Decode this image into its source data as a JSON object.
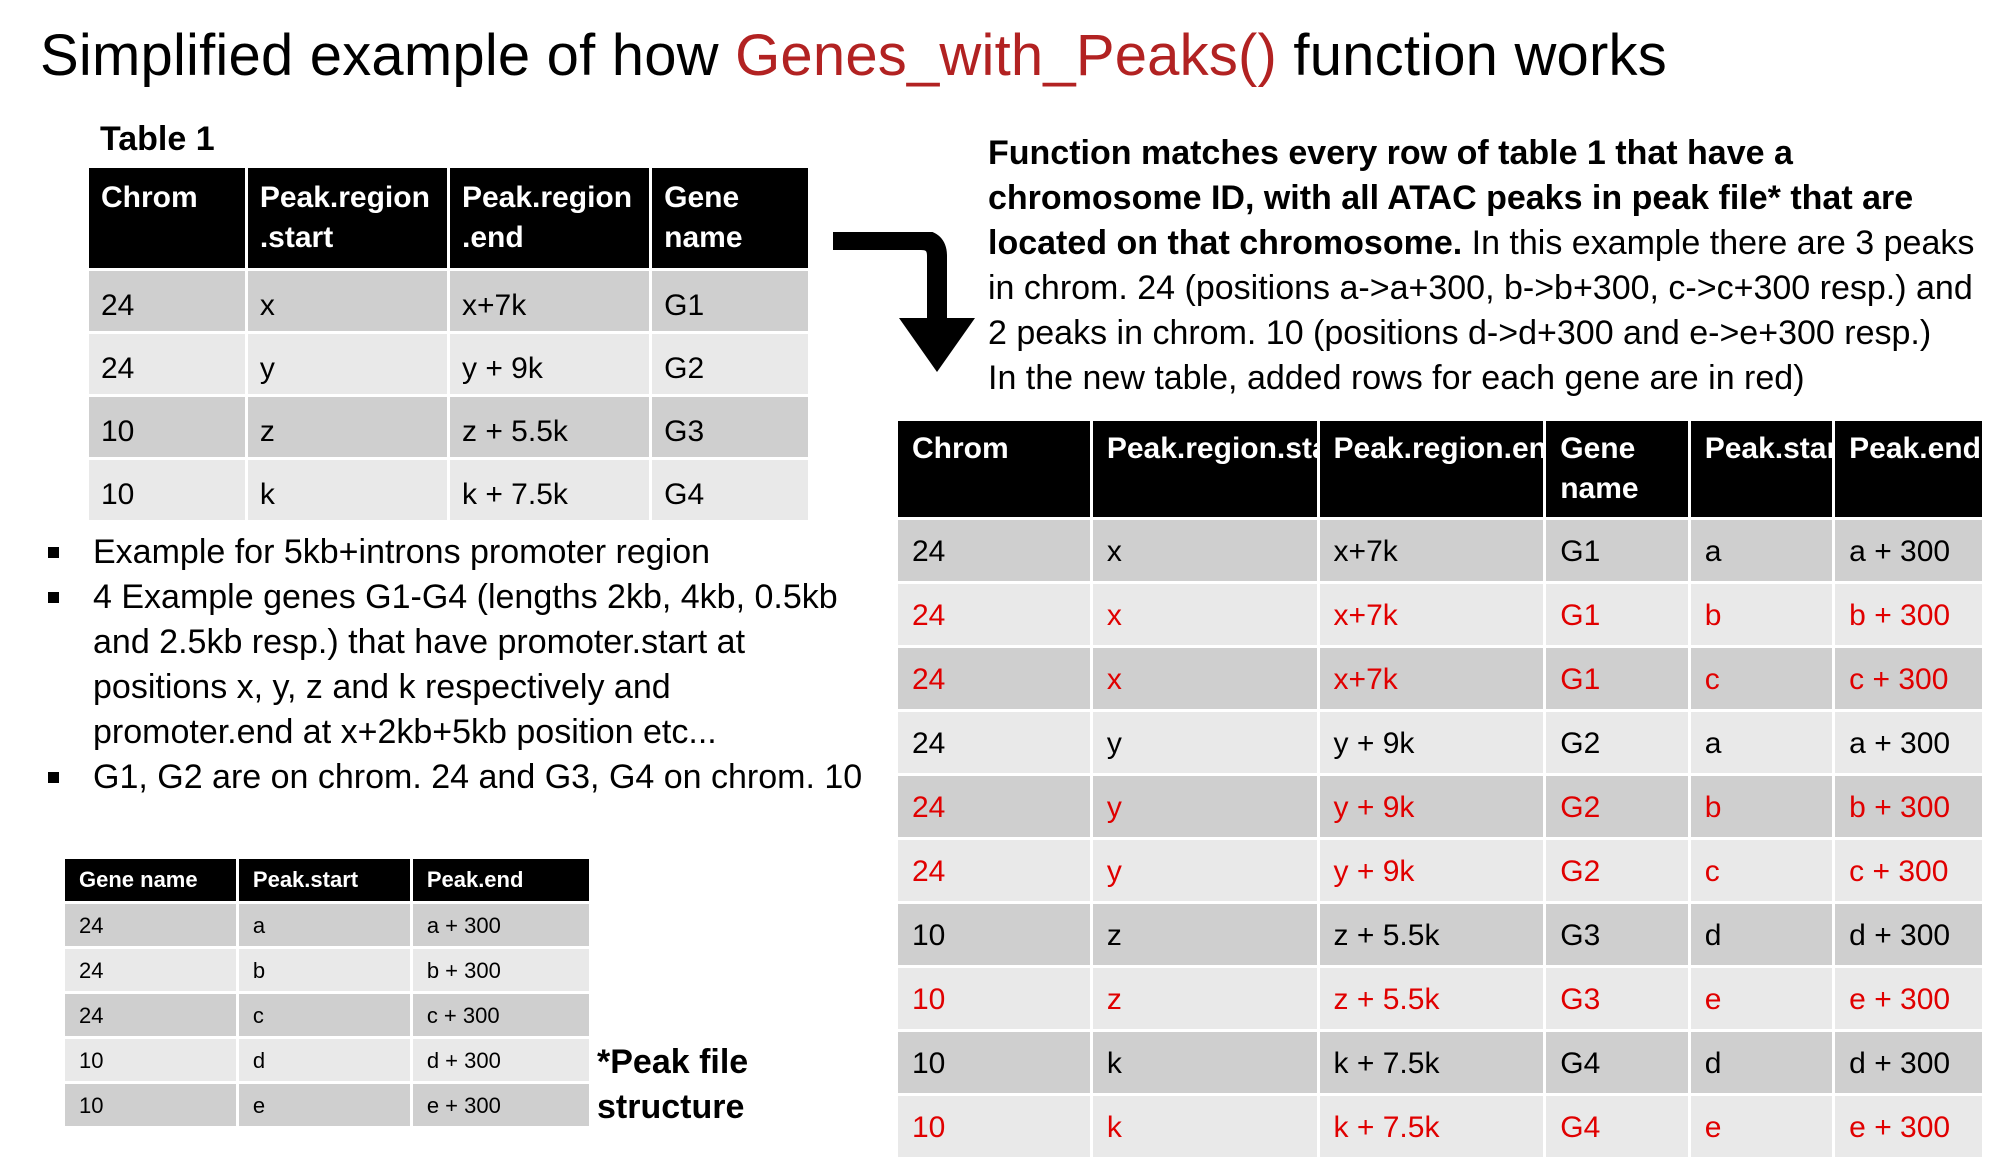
{
  "title": {
    "prefix": "Simplified example of how ",
    "function_name": "Genes_with_Peaks()",
    "suffix": " function works"
  },
  "table1": {
    "caption": "Table 1",
    "headers": [
      "Chrom",
      "Peak.region .start",
      "Peak.region .end",
      "Gene name"
    ],
    "rows": [
      [
        "24",
        "x",
        "x+7k",
        "G1"
      ],
      [
        "24",
        "y",
        "y + 9k",
        "G2"
      ],
      [
        "10",
        "z",
        "z + 5.5k",
        "G3"
      ],
      [
        "10",
        "k",
        "k + 7.5k",
        "G4"
      ]
    ]
  },
  "bullets": [
    "Example for 5kb+introns promoter region",
    "4 Example genes G1-G4 (lengths 2kb, 4kb, 0.5kb and 2.5kb resp.) that have promoter.start at positions x, y, z and k respectively and promoter.end at x+2kb+5kb position etc...",
    "G1, G2 are on chrom. 24 and G3, G4 on chrom. 10"
  ],
  "peak_file": {
    "caption": "*Peak file structure",
    "headers": [
      "Gene name",
      "Peak.start",
      "Peak.end"
    ],
    "rows": [
      [
        "24",
        "a",
        "a + 300"
      ],
      [
        "24",
        "b",
        "b + 300"
      ],
      [
        "24",
        "c",
        "c + 300"
      ],
      [
        "10",
        "d",
        "d + 300"
      ],
      [
        "10",
        "e",
        "e + 300"
      ]
    ]
  },
  "description": {
    "bold": "Function matches every row of table 1 that have a chromosome ID, with all ATAC peaks in peak file* that are located on that chromosome.",
    "text": " In this example there are 3 peaks in chrom. 24 (positions a->a+300, b->b+300, c->c+300 resp.) and 2 peaks in chrom. 10 (positions d->d+300 and e->e+300 resp.)",
    "text2": "In the new table, added rows for each gene are in red)"
  },
  "result_table": {
    "headers": [
      "Chrom",
      "Peak.region.start",
      "Peak.region.end",
      "Gene name",
      "Peak.start",
      "Peak.end"
    ],
    "rows": [
      {
        "cells": [
          "24",
          "x",
          "x+7k",
          "G1",
          "a",
          "a + 300"
        ],
        "added": false
      },
      {
        "cells": [
          "24",
          "x",
          "x+7k",
          "G1",
          "b",
          "b + 300"
        ],
        "added": true
      },
      {
        "cells": [
          "24",
          "x",
          "x+7k",
          "G1",
          "c",
          "c + 300"
        ],
        "added": true
      },
      {
        "cells": [
          "24",
          "y",
          "y + 9k",
          "G2",
          "a",
          "a + 300"
        ],
        "added": false
      },
      {
        "cells": [
          "24",
          "y",
          "y + 9k",
          "G2",
          "b",
          "b + 300"
        ],
        "added": true
      },
      {
        "cells": [
          "24",
          "y",
          "y + 9k",
          "G2",
          "c",
          "c + 300"
        ],
        "added": true
      },
      {
        "cells": [
          "10",
          "z",
          "z + 5.5k",
          "G3",
          "d",
          "d + 300"
        ],
        "added": false
      },
      {
        "cells": [
          "10",
          "z",
          "z + 5.5k",
          "G3",
          "e",
          "e + 300"
        ],
        "added": true
      },
      {
        "cells": [
          "10",
          "k",
          "k + 7.5k",
          "G4",
          "d",
          "d + 300"
        ],
        "added": false
      },
      {
        "cells": [
          "10",
          "k",
          "k + 7.5k",
          "G4",
          "e",
          "e + 300"
        ],
        "added": true
      }
    ]
  },
  "colors": {
    "function_name": "#b22222",
    "added_row_text": "#e00000",
    "header_bg": "#000000",
    "row_dark": "#cfcfcf",
    "row_light": "#e9e9e9"
  },
  "icons": [
    "curved-down-arrow-icon"
  ]
}
